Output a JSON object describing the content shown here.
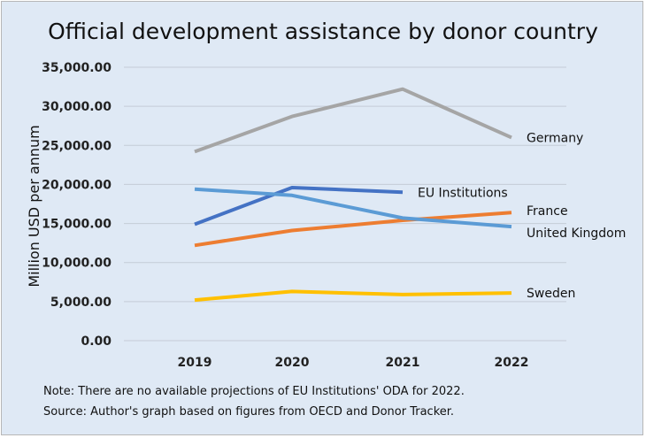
{
  "chart_data": {
    "type": "line",
    "title": "Official development assistance by donor country",
    "ylabel": "Million USD per annum",
    "xlabel": "",
    "categories": [
      "2019",
      "2020",
      "2021",
      "2022"
    ],
    "ylim": [
      0,
      35000
    ],
    "yticks": [
      "0.00",
      "5,000.00",
      "10,000.00",
      "15,000.00",
      "20,000.00",
      "25,000.00",
      "30,000.00",
      "35,000.00"
    ],
    "grid": true,
    "legend": "inline labels at line ends",
    "series": [
      {
        "name": "Germany",
        "color": "#a5a5a5",
        "values": [
          24200,
          28700,
          32200,
          26000
        ]
      },
      {
        "name": "EU Institutions",
        "color": "#4472c4",
        "values": [
          14900,
          19600,
          19000,
          null
        ]
      },
      {
        "name": "France",
        "color": "#ed7d31",
        "values": [
          12200,
          14100,
          15400,
          16400
        ]
      },
      {
        "name": "United Kingdom",
        "color": "#5b9bd5",
        "values": [
          19400,
          18600,
          15700,
          14600
        ]
      },
      {
        "name": "Sweden",
        "color": "#ffc000",
        "values": [
          5200,
          6300,
          5900,
          6100
        ]
      }
    ],
    "notes": [
      "Note: There are no available projections of EU Institutions' ODA for 2022.",
      "Source: Author's graph based on figures from OECD and Donor Tracker."
    ]
  }
}
